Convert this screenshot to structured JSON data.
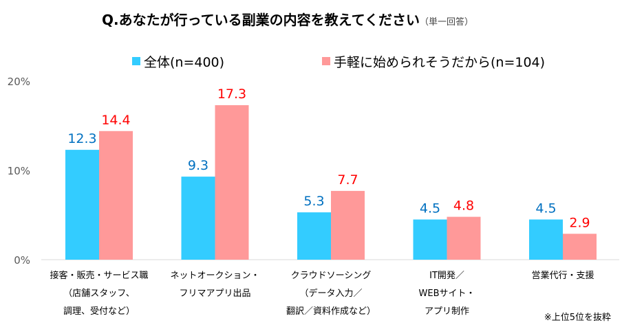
{
  "chart_data": {
    "type": "bar",
    "title": "Q.あなたが行っている副業の内容を教えてください",
    "subtitle": "（単一回答）",
    "categories": [
      [
        "接客・販売・サービス職",
        "（店舗スタッフ、",
        "調理、受付など）"
      ],
      [
        "ネットオークション・",
        "フリマアプリ出品"
      ],
      [
        "クラウドソーシング",
        "（データ入力／",
        "翻訳／資料作成など）"
      ],
      [
        "IT開発／",
        "WEBサイト・",
        "アプリ制作"
      ],
      [
        "営業代行・支援"
      ]
    ],
    "series": [
      {
        "name": "全体(n=400)",
        "values": [
          12.3,
          9.3,
          5.3,
          4.5,
          4.5
        ],
        "color": "#33ccff",
        "label_color": "#0070c0"
      },
      {
        "name": "手軽に始められそうだから(n=104)",
        "values": [
          14.4,
          17.3,
          7.7,
          4.8,
          2.9
        ],
        "color": "#ff9999",
        "label_color": "#ff0000"
      }
    ],
    "yticks": [
      "0%",
      "10%",
      "20%"
    ],
    "ylim": [
      0,
      20
    ],
    "grid": false,
    "legend": "top",
    "note": "※上位5位を抜粋"
  }
}
